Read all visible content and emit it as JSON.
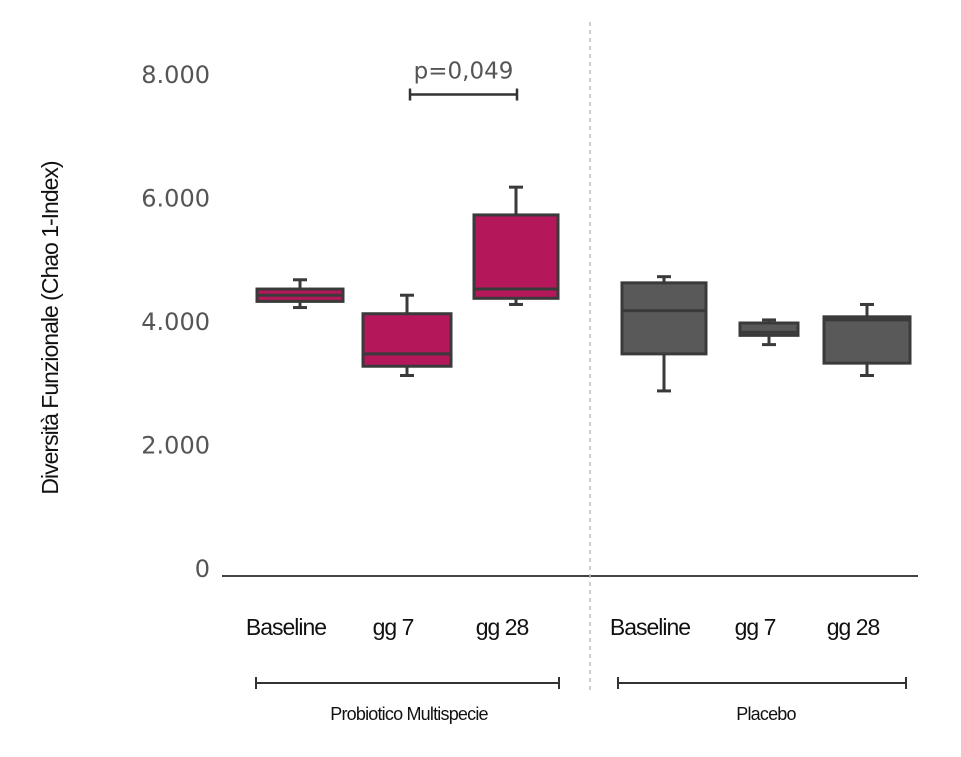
{
  "chart_data": {
    "type": "box",
    "ylabel": "Diversità Funzionale (Chao 1-Index)",
    "ylim": [
      0,
      8000
    ],
    "yticks": [
      {
        "value": 0,
        "label": "0"
      },
      {
        "value": 2000,
        "label": "2.000"
      },
      {
        "value": 4000,
        "label": "4.000"
      },
      {
        "value": 6000,
        "label": "6.000"
      },
      {
        "value": 8000,
        "label": "8.000"
      }
    ],
    "grid": false,
    "groups": [
      {
        "label": "Probiotico Multispecie",
        "color": "#b5185a",
        "boxes": [
          {
            "category": "Baseline",
            "min": 4250,
            "q1": 4350,
            "median": 4450,
            "q3": 4550,
            "max": 4700
          },
          {
            "category": "gg 7",
            "min": 3150,
            "q1": 3300,
            "median": 3500,
            "q3": 4150,
            "max": 4450
          },
          {
            "category": "gg 28",
            "min": 4300,
            "q1": 4400,
            "median": 4550,
            "q3": 5750,
            "max": 6200
          }
        ]
      },
      {
        "label": "Placebo",
        "color": "#595959",
        "boxes": [
          {
            "category": "Baseline",
            "min": 2900,
            "q1": 3500,
            "median": 4200,
            "q3": 4650,
            "max": 4750
          },
          {
            "category": "gg 7",
            "min": 3650,
            "q1": 3800,
            "median": 3850,
            "q3": 4000,
            "max": 4050
          },
          {
            "category": "gg 28",
            "min": 3150,
            "q1": 3350,
            "median": 4050,
            "q3": 4100,
            "max": 4300
          }
        ]
      }
    ],
    "annotations": [
      {
        "text": "p=0,049",
        "group": 0,
        "from": 1,
        "to": 2,
        "y": 7700
      }
    ]
  }
}
